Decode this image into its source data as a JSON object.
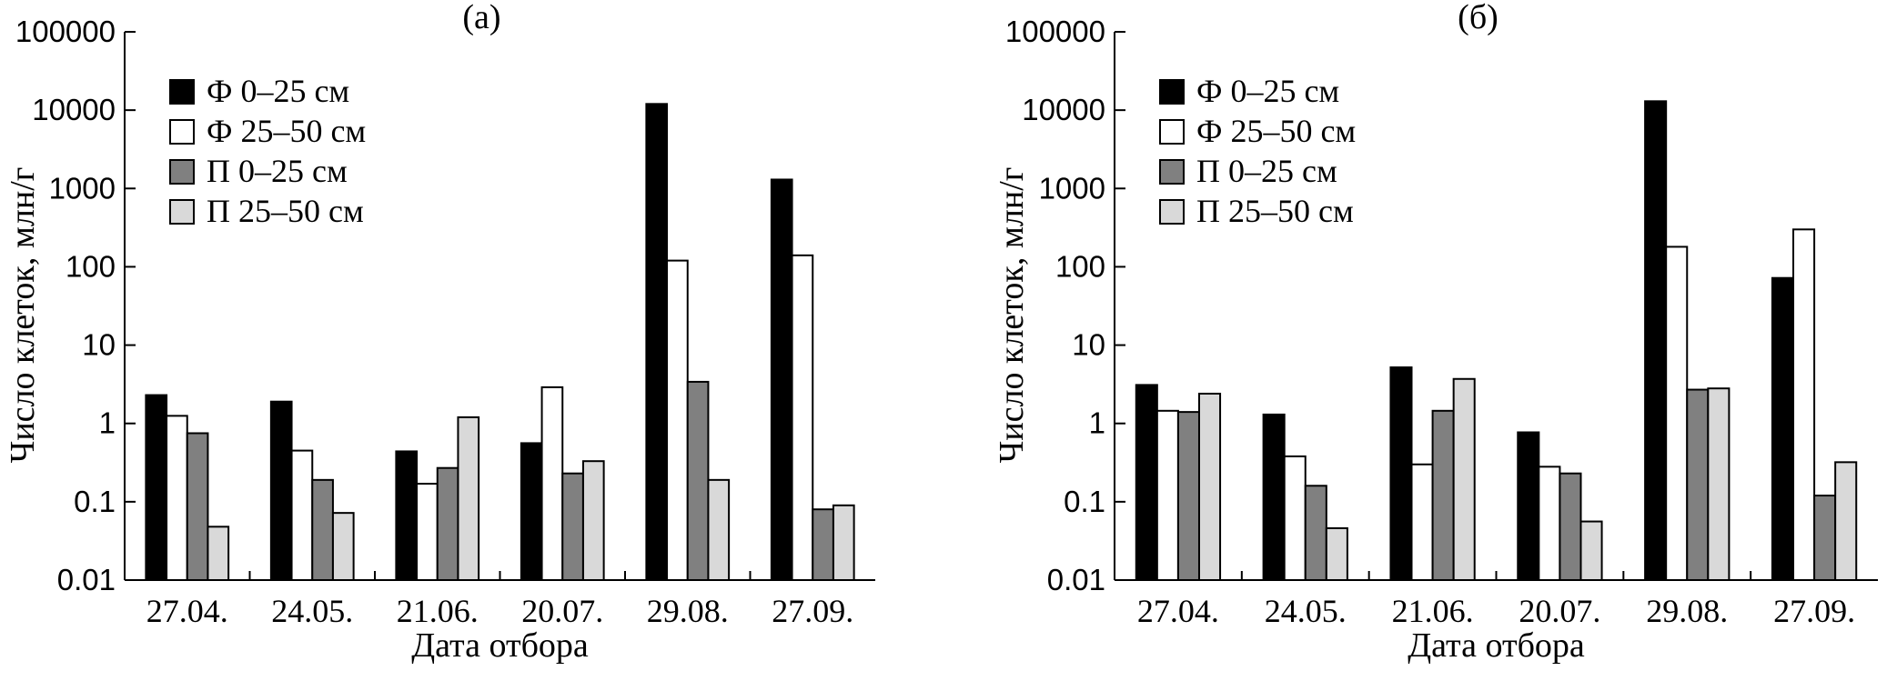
{
  "chart_data": [
    {
      "type": "bar",
      "title": "(а)",
      "xlabel": "Дата отбора",
      "ylabel": "Число клеток, млн/г",
      "yscale": "log",
      "ylim": [
        0.01,
        100000
      ],
      "yticks": [
        "0.01",
        "0.1",
        "1",
        "10",
        "100",
        "1000",
        "10000",
        "100000"
      ],
      "categories": [
        "27.04.",
        "24.05.",
        "21.06.",
        "20.07.",
        "29.08.",
        "27.09."
      ],
      "legend_position": "top-left",
      "series": [
        {
          "name": "Ф 0–25 см",
          "color": "#000000",
          "values": [
            2.3,
            1.9,
            0.44,
            0.56,
            12000,
            1300
          ]
        },
        {
          "name": "Ф 25–50 см",
          "color": "#ffffff",
          "values": [
            1.25,
            0.45,
            0.17,
            2.9,
            120,
            140
          ]
        },
        {
          "name": "П 0–25 см",
          "color": "#808080",
          "values": [
            0.75,
            0.19,
            0.27,
            0.23,
            3.4,
            0.08
          ]
        },
        {
          "name": "П 25–50 см",
          "color": "#d9d9d9",
          "values": [
            0.048,
            0.072,
            1.2,
            0.33,
            0.19,
            0.09
          ]
        }
      ]
    },
    {
      "type": "bar",
      "title": "(б)",
      "xlabel": "Дата отбора",
      "ylabel": "Число клеток, млн/г",
      "yscale": "log",
      "ylim": [
        0.01,
        100000
      ],
      "yticks": [
        "0.01",
        "0.1",
        "1",
        "10",
        "100",
        "1000",
        "10000",
        "100000"
      ],
      "categories": [
        "27.04.",
        "24.05.",
        "21.06.",
        "20.07.",
        "29.08.",
        "27.09."
      ],
      "legend_position": "top-left",
      "series": [
        {
          "name": "Ф 0–25 см",
          "color": "#000000",
          "values": [
            3.1,
            1.3,
            5.2,
            0.77,
            13000,
            72
          ]
        },
        {
          "name": "Ф 25–50 см",
          "color": "#ffffff",
          "values": [
            1.45,
            0.38,
            0.3,
            0.28,
            180,
            300
          ]
        },
        {
          "name": "П 0–25 см",
          "color": "#808080",
          "values": [
            1.4,
            0.16,
            1.45,
            0.23,
            2.7,
            0.12
          ]
        },
        {
          "name": "П 25–50 см",
          "color": "#d9d9d9",
          "values": [
            2.4,
            0.046,
            3.7,
            0.056,
            2.8,
            0.32
          ]
        }
      ]
    }
  ]
}
